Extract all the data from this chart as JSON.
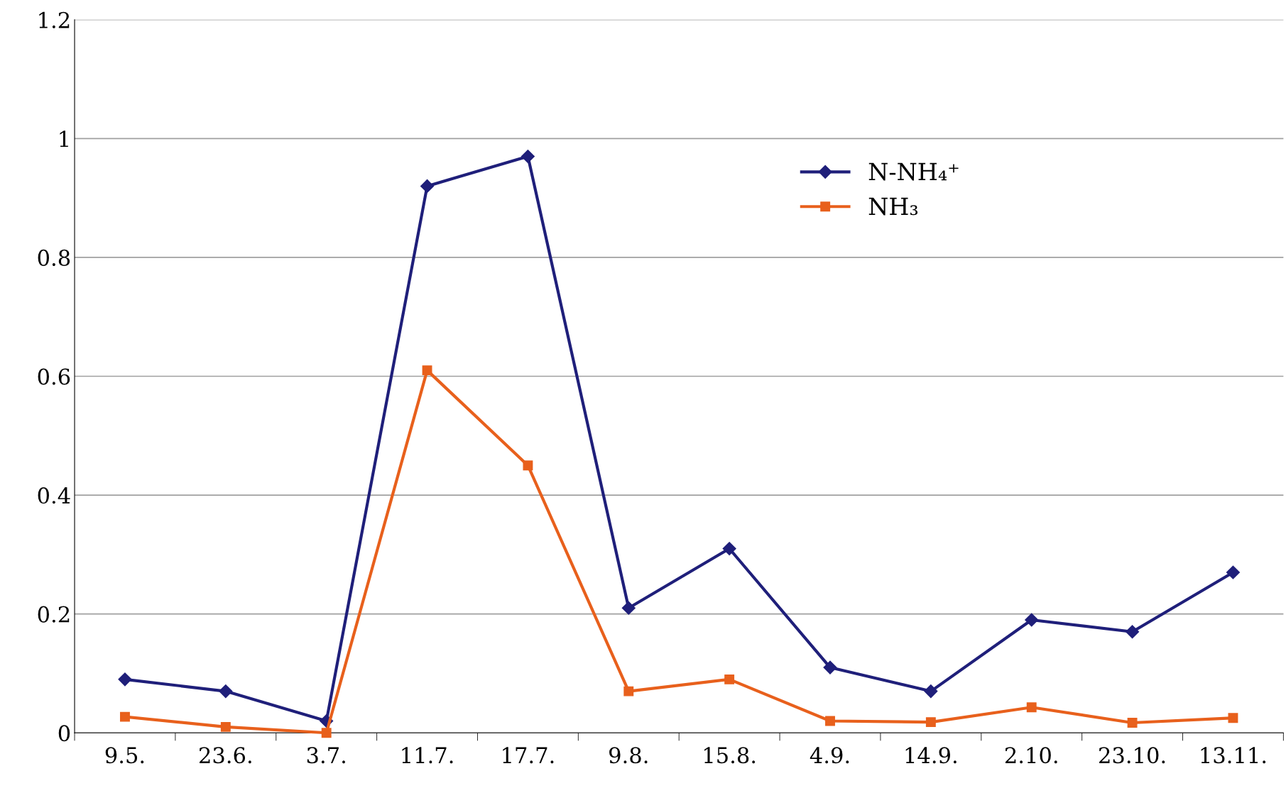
{
  "chart_data": {
    "type": "line",
    "categories": [
      "9.5.",
      "23.6.",
      "3.7.",
      "11.7.",
      "17.7.",
      "9.8.",
      "15.8.",
      "4.9.",
      "14.9.",
      "2.10.",
      "23.10.",
      "13.11."
    ],
    "series": [
      {
        "name": "N-NH₄⁺",
        "color": "#1f1f7a",
        "marker": "diamond",
        "values": [
          0.09,
          0.07,
          0.02,
          0.92,
          0.97,
          0.21,
          0.31,
          0.11,
          0.07,
          0.19,
          0.17,
          0.27
        ]
      },
      {
        "name": "NH₃",
        "color": "#e8601c",
        "marker": "square",
        "values": [
          0.027,
          0.01,
          0.0,
          0.61,
          0.45,
          0.07,
          0.09,
          0.02,
          0.018,
          0.043,
          0.017,
          0.025
        ]
      }
    ],
    "ylim": [
      0,
      1.2
    ],
    "yticks": [
      0,
      0.2,
      0.4,
      0.6,
      0.8,
      1,
      1.2
    ],
    "grid": "y",
    "legend": "upper right",
    "line_style": "solid"
  }
}
